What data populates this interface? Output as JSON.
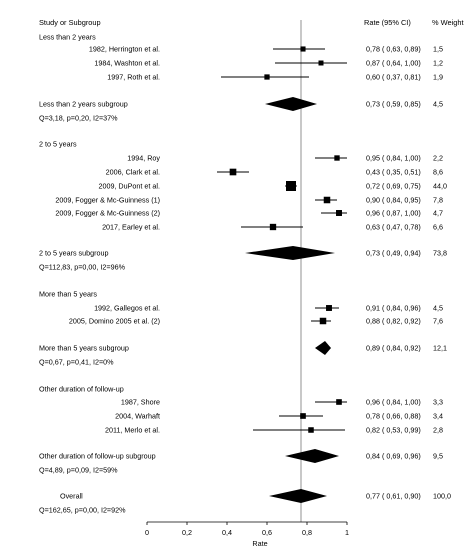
{
  "headers": {
    "study": "Study or Subgroup",
    "rate": "Rate (95% CI)",
    "weight": "% Weight"
  },
  "chart_data": {
    "type": "forest",
    "xlabel": "Rate",
    "xlim": [
      0,
      1
    ],
    "xticks": [
      "0",
      "0,2",
      "0,4",
      "0,6",
      "0,8",
      "1"
    ],
    "reference_line": 0.77,
    "groups": [
      {
        "title": "Less than 2 years",
        "studies": [
          {
            "label": "1982, Herrington et al.",
            "rate": 0.78,
            "lo": 0.63,
            "hi": 0.89,
            "ci_text": "0,78  ( 0,63,  0,89)",
            "weight": "1,5"
          },
          {
            "label": "1984, Washton et al.",
            "rate": 0.87,
            "lo": 0.64,
            "hi": 1.0,
            "ci_text": "0,87  ( 0,64,  1,00)",
            "weight": "1,2"
          },
          {
            "label": "1997, Roth et al.",
            "rate": 0.6,
            "lo": 0.37,
            "hi": 0.81,
            "ci_text": "0,60  ( 0,37,  0,81)",
            "weight": "1,9"
          }
        ],
        "subtotal": {
          "label": "Less than 2 years subgroup",
          "rate": 0.73,
          "lo": 0.59,
          "hi": 0.85,
          "ci_text": "0,73  ( 0,59,  0,85)",
          "weight": "4,5"
        },
        "het": "Q=3,18, p=0,20, I2=37%"
      },
      {
        "title": "2 to 5 years",
        "studies": [
          {
            "label": "1994, Roy",
            "rate": 0.95,
            "lo": 0.84,
            "hi": 1.0,
            "ci_text": "0,95  ( 0,84,  1,00)",
            "weight": "2,2"
          },
          {
            "label": "2006, Clark et al.",
            "rate": 0.43,
            "lo": 0.35,
            "hi": 0.51,
            "ci_text": "0,43  ( 0,35,  0,51)",
            "weight": "8,6"
          },
          {
            "label": "2009, DuPont et al.",
            "rate": 0.72,
            "lo": 0.69,
            "hi": 0.75,
            "ci_text": "0,72  ( 0,69,  0,75)",
            "weight": "44,0"
          },
          {
            "label": "2009, Fogger & Mc-Guinness (1)",
            "rate": 0.9,
            "lo": 0.84,
            "hi": 0.95,
            "ci_text": "0,90  ( 0,84,  0,95)",
            "weight": "7,8"
          },
          {
            "label": "2009, Fogger & Mc-Guinness (2)",
            "rate": 0.96,
            "lo": 0.87,
            "hi": 1.0,
            "ci_text": "0,96  ( 0,87,  1,00)",
            "weight": "4,7"
          },
          {
            "label": "2017, Earley et al.",
            "rate": 0.63,
            "lo": 0.47,
            "hi": 0.78,
            "ci_text": "0,63  ( 0,47,  0,78)",
            "weight": "6,6"
          }
        ],
        "subtotal": {
          "label": "2 to 5 years subgroup",
          "rate": 0.73,
          "lo": 0.49,
          "hi": 0.94,
          "ci_text": "0,73  ( 0,49,  0,94)",
          "weight": "73,8"
        },
        "het": "Q=112,83, p=0,00, I2=96%"
      },
      {
        "title": "More than 5 years",
        "studies": [
          {
            "label": "1992, Gallegos et al.",
            "rate": 0.91,
            "lo": 0.84,
            "hi": 0.96,
            "ci_text": "0,91  ( 0,84,  0,96)",
            "weight": "4,5"
          },
          {
            "label": "2005, Domino 2005 et al. (2)",
            "rate": 0.88,
            "lo": 0.82,
            "hi": 0.92,
            "ci_text": "0,88  ( 0,82,  0,92)",
            "weight": "7,6"
          }
        ],
        "subtotal": {
          "label": "More than 5 years subgroup",
          "rate": 0.89,
          "lo": 0.84,
          "hi": 0.92,
          "ci_text": "0,89  ( 0,84,  0,92)",
          "weight": "12,1"
        },
        "het": "Q=0,67, p=0,41, I2=0%"
      },
      {
        "title": "Other duration of follow-up",
        "studies": [
          {
            "label": "1987, Shore",
            "rate": 0.96,
            "lo": 0.84,
            "hi": 1.0,
            "ci_text": "0,96  ( 0,84,  1,00)",
            "weight": "3,3"
          },
          {
            "label": "2004, Warhaft",
            "rate": 0.78,
            "lo": 0.66,
            "hi": 0.88,
            "ci_text": "0,78  ( 0,66,  0,88)",
            "weight": "3,4"
          },
          {
            "label": "2011, Merlo et al.",
            "rate": 0.82,
            "lo": 0.53,
            "hi": 0.99,
            "ci_text": "0,82  ( 0,53,  0,99)",
            "weight": "2,8"
          }
        ],
        "subtotal": {
          "label": "Other duration of follow-up subgroup",
          "rate": 0.84,
          "lo": 0.69,
          "hi": 0.96,
          "ci_text": "0,84  ( 0,69,  0,96)",
          "weight": "9,5"
        },
        "het": "Q=4,89, p=0,09, I2=59%"
      }
    ],
    "overall": {
      "label": "Overall",
      "rate": 0.77,
      "lo": 0.61,
      "hi": 0.9,
      "ci_text": "0,77  ( 0,61,  0,90)",
      "weight": "100,0"
    },
    "overall_het": "Q=162,65, p=0,00, I2=92%"
  }
}
